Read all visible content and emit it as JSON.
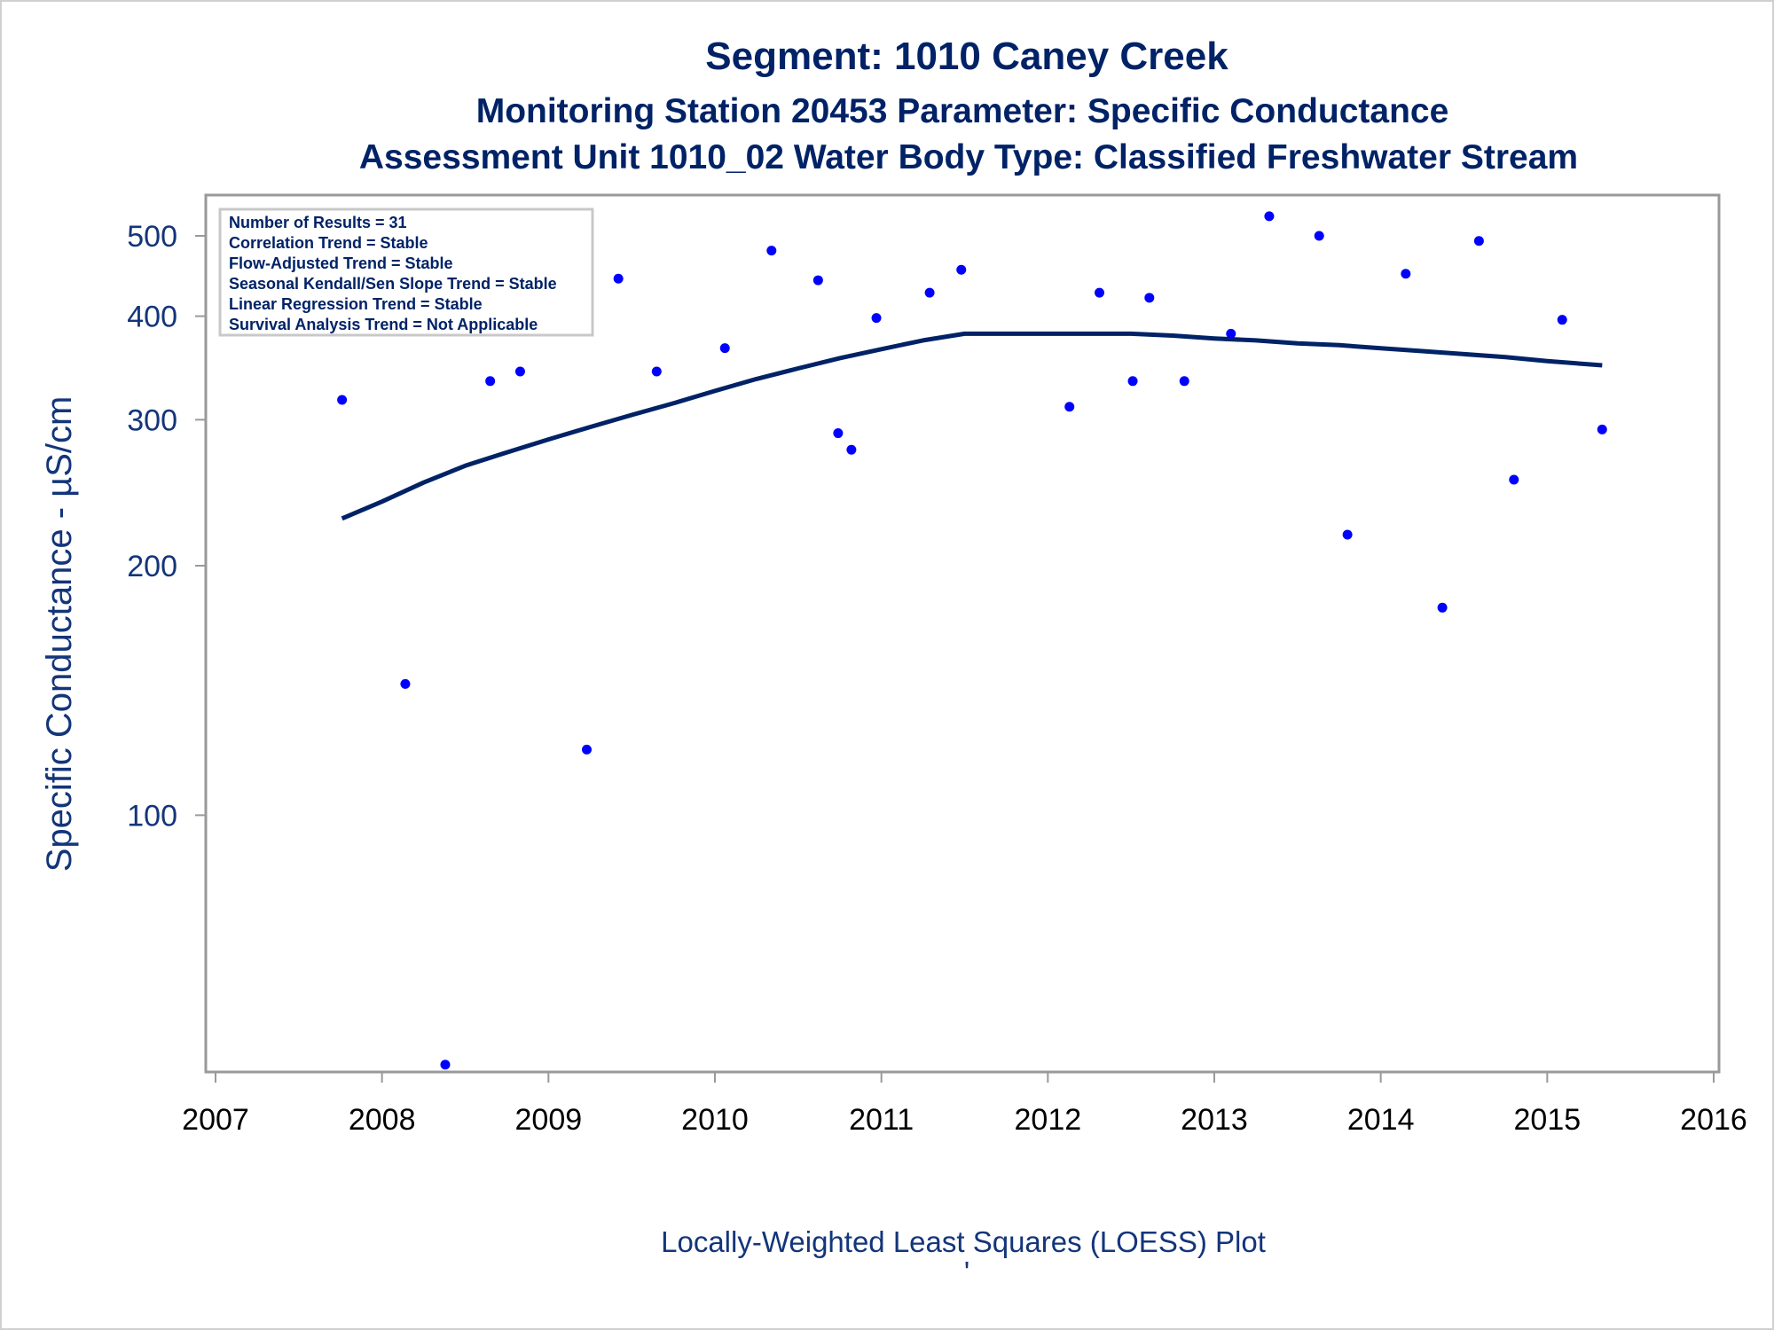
{
  "titles": {
    "line1": "Segment: 1010  Caney Creek",
    "line2": "Monitoring Station 20453 Parameter: Specific Conductance",
    "line3": "Assessment Unit 1010_02   Water Body Type: Classified Freshwater Stream"
  },
  "stats_box": [
    "Number of Results = 31",
    "Correlation Trend = Stable",
    "Flow-Adjusted Trend = Stable",
    "Seasonal Kendall/Sen Slope Trend = Stable",
    "Linear Regression Trend = Stable",
    "Survival Analysis Trend = Not Applicable"
  ],
  "caption": "Locally-Weighted Least Squares (LOESS) Plot",
  "caption_mark": "'",
  "colors": {
    "title": "#002266",
    "points": "#0000ff",
    "loess": "#002266",
    "axis": "#999999"
  },
  "chart_data": {
    "type": "scatter",
    "ylabel": "Specific Conductance -  µS/cm",
    "xlabel": "",
    "y_scale": "log",
    "xlim": [
      2007,
      2016
    ],
    "ylim": [
      49,
      560
    ],
    "x_ticks": [
      2007,
      2008,
      2009,
      2010,
      2011,
      2012,
      2013,
      2014,
      2015,
      2016
    ],
    "y_ticks": [
      100,
      200,
      300,
      400,
      500
    ],
    "grid": false,
    "series": [
      {
        "type": "scatter",
        "points": [
          [
            2007.76,
            317
          ],
          [
            2008.14,
            144
          ],
          [
            2008.38,
            50
          ],
          [
            2008.65,
            334
          ],
          [
            2008.83,
            343
          ],
          [
            2009.23,
            120
          ],
          [
            2009.42,
            444
          ],
          [
            2009.65,
            343
          ],
          [
            2010.06,
            366
          ],
          [
            2010.34,
            480
          ],
          [
            2010.62,
            442
          ],
          [
            2010.74,
            289
          ],
          [
            2010.82,
            276
          ],
          [
            2010.97,
            398
          ],
          [
            2011.29,
            427
          ],
          [
            2011.48,
            455
          ],
          [
            2012.13,
            311
          ],
          [
            2012.31,
            427
          ],
          [
            2012.51,
            334
          ],
          [
            2012.61,
            421
          ],
          [
            2012.82,
            334
          ],
          [
            2013.1,
            381
          ],
          [
            2013.33,
            528
          ],
          [
            2013.63,
            500
          ],
          [
            2013.8,
            218
          ],
          [
            2014.15,
            450
          ],
          [
            2014.37,
            178
          ],
          [
            2014.59,
            493
          ],
          [
            2014.8,
            254
          ],
          [
            2015.09,
            396
          ],
          [
            2015.33,
            292
          ]
        ]
      },
      {
        "type": "line",
        "points": [
          [
            2007.76,
            228
          ],
          [
            2008.0,
            239
          ],
          [
            2008.25,
            252
          ],
          [
            2008.5,
            264
          ],
          [
            2008.75,
            274
          ],
          [
            2009.0,
            284
          ],
          [
            2009.25,
            294
          ],
          [
            2009.5,
            304
          ],
          [
            2009.75,
            314
          ],
          [
            2010.0,
            325
          ],
          [
            2010.25,
            336
          ],
          [
            2010.5,
            346
          ],
          [
            2010.75,
            356
          ],
          [
            2011.0,
            365
          ],
          [
            2011.25,
            374
          ],
          [
            2011.5,
            381
          ],
          [
            2012.0,
            381
          ],
          [
            2012.25,
            381
          ],
          [
            2012.5,
            381
          ],
          [
            2012.75,
            379
          ],
          [
            2013.0,
            376
          ],
          [
            2013.25,
            374
          ],
          [
            2013.5,
            371
          ],
          [
            2013.75,
            369
          ],
          [
            2014.0,
            366
          ],
          [
            2014.25,
            363
          ],
          [
            2014.5,
            360
          ],
          [
            2014.75,
            357
          ],
          [
            2015.0,
            353
          ],
          [
            2015.33,
            349
          ]
        ]
      }
    ]
  }
}
